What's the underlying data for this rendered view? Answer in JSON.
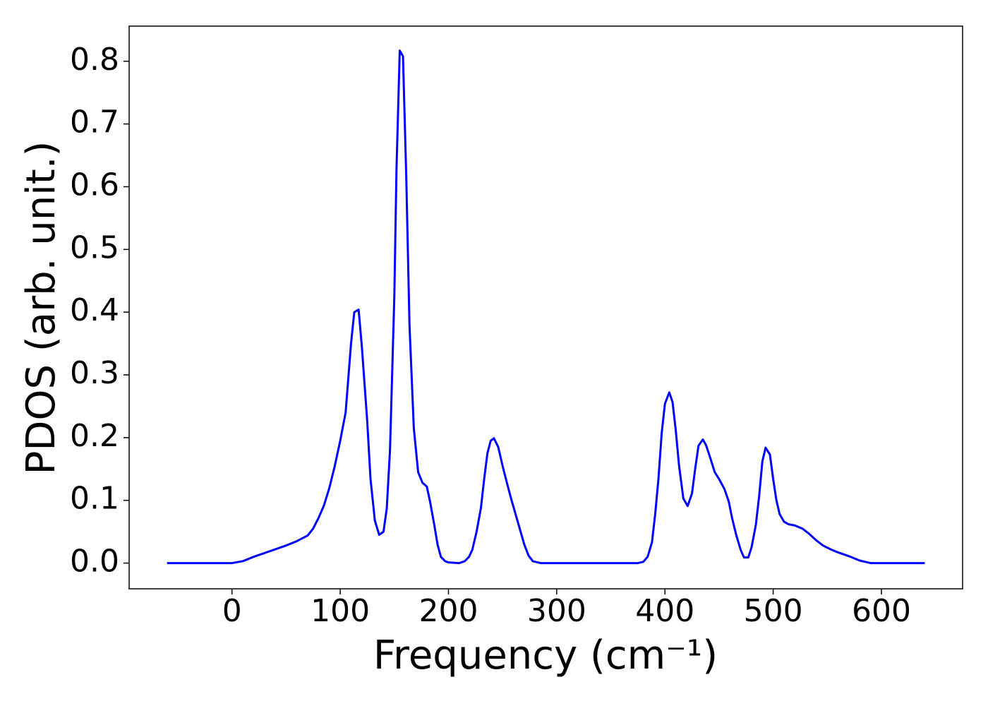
{
  "chart_data": {
    "type": "line",
    "xlabel": "Frequency (cm⁻¹)",
    "ylabel": "PDOS (arb. unit.)",
    "x": [
      -60,
      -40,
      -20,
      0,
      10,
      20,
      30,
      40,
      50,
      60,
      70,
      75,
      80,
      85,
      90,
      95,
      100,
      105,
      110,
      113,
      117,
      120,
      125,
      128,
      132,
      136,
      140,
      143,
      146,
      150,
      152,
      155,
      158,
      161,
      164,
      168,
      172,
      176,
      180,
      183,
      187,
      190,
      193,
      197,
      200,
      210,
      215,
      219,
      222,
      226,
      230,
      233,
      236,
      239,
      242,
      246,
      250,
      254,
      258,
      264,
      270,
      274,
      278,
      285,
      300,
      320,
      340,
      360,
      375,
      380,
      384,
      388,
      391,
      394,
      397,
      400,
      404,
      407,
      410,
      413,
      417,
      421,
      425,
      428,
      431,
      435,
      438,
      442,
      446,
      450,
      455,
      459,
      462,
      466,
      470,
      473,
      477,
      480,
      484,
      487,
      490,
      493,
      497,
      500,
      503,
      506,
      510,
      514,
      520,
      527,
      533,
      540,
      546,
      553,
      560,
      570,
      580,
      590,
      600,
      620,
      640
    ],
    "series": [
      {
        "color": "#0000ff",
        "values": [
          0,
          0,
          0,
          0,
          0.003,
          0.01,
          0.016,
          0.022,
          0.028,
          0.035,
          0.044,
          0.055,
          0.072,
          0.092,
          0.12,
          0.155,
          0.195,
          0.24,
          0.35,
          0.4,
          0.404,
          0.345,
          0.225,
          0.134,
          0.068,
          0.045,
          0.05,
          0.087,
          0.18,
          0.425,
          0.628,
          0.817,
          0.808,
          0.617,
          0.38,
          0.215,
          0.145,
          0.128,
          0.122,
          0.098,
          0.06,
          0.029,
          0.01,
          0.003,
          0.001,
          0,
          0.003,
          0.01,
          0.021,
          0.05,
          0.088,
          0.134,
          0.175,
          0.195,
          0.199,
          0.185,
          0.155,
          0.128,
          0.102,
          0.066,
          0.03,
          0.012,
          0.003,
          0,
          0,
          0,
          0,
          0,
          0,
          0.002,
          0.01,
          0.033,
          0.078,
          0.134,
          0.207,
          0.254,
          0.272,
          0.257,
          0.212,
          0.156,
          0.103,
          0.091,
          0.111,
          0.151,
          0.187,
          0.197,
          0.188,
          0.167,
          0.145,
          0.134,
          0.118,
          0.098,
          0.072,
          0.044,
          0.021,
          0.009,
          0.009,
          0.025,
          0.061,
          0.106,
          0.162,
          0.184,
          0.173,
          0.134,
          0.1,
          0.078,
          0.066,
          0.062,
          0.06,
          0.055,
          0.047,
          0.036,
          0.028,
          0.022,
          0.017,
          0.011,
          0.004,
          0,
          0,
          0,
          0
        ]
      }
    ],
    "xlim": [
      -95,
      675
    ],
    "ylim": [
      -0.041,
      0.856
    ],
    "xticks": [
      0,
      100,
      200,
      300,
      400,
      500,
      600
    ],
    "yticks": [
      {
        "value": 0,
        "label": "0.0"
      },
      {
        "value": 0.1,
        "label": "0.1"
      },
      {
        "value": 0.2,
        "label": "0.2"
      },
      {
        "value": 0.3,
        "label": "0.3"
      },
      {
        "value": 0.4,
        "label": "0.4"
      },
      {
        "value": 0.5,
        "label": "0.5"
      },
      {
        "value": 0.6,
        "label": "0.6"
      },
      {
        "value": 0.7,
        "label": "0.7"
      },
      {
        "value": 0.8,
        "label": "0.8"
      }
    ]
  }
}
